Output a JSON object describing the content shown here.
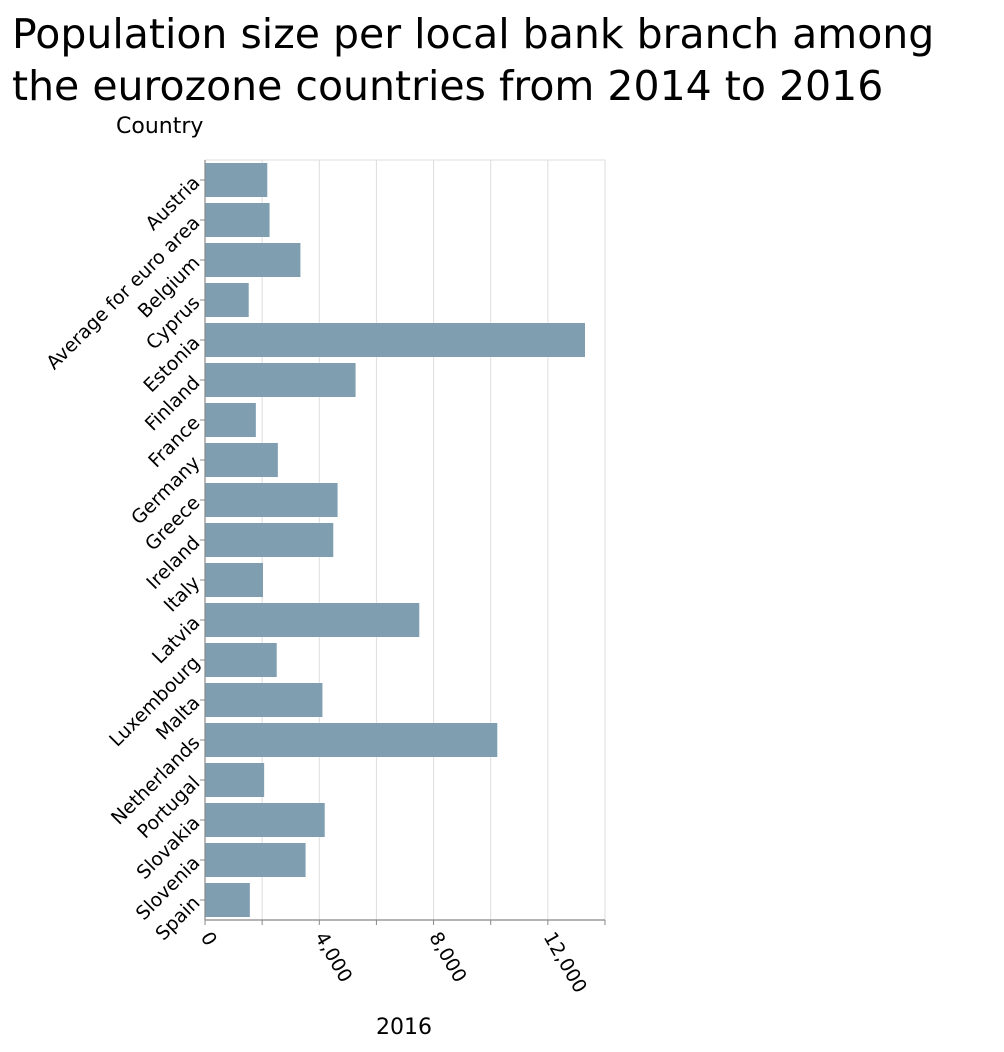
{
  "title_lines": [
    "Population size per local bank branch among",
    "the eurozone countries from 2014 to 2016"
  ],
  "chart_data": {
    "type": "bar",
    "orientation": "horizontal",
    "title": "Population size per local bank branch among the eurozone countries from 2014 to 2016",
    "ylabel": "Country",
    "xlabel": "2016",
    "xlim": [
      0,
      14000
    ],
    "x_ticks": [
      0,
      4000,
      8000,
      12000
    ],
    "x_tick_labels": [
      "0",
      "4,000",
      "8,000",
      "12,000"
    ],
    "grid": true,
    "bar_color": "#7f9fb1",
    "categories": [
      "Austria",
      "Average for euro area",
      "Belgium",
      "Cyprus",
      "Estonia",
      "Finland",
      "France",
      "Germany",
      "Greece",
      "Ireland",
      "Italy",
      "Latvia",
      "Luxembourg",
      "Malta",
      "Netherlands",
      "Portugal",
      "Slovakia",
      "Slovenia",
      "Spain"
    ],
    "values": [
      2180,
      2260,
      3340,
      1530,
      13300,
      5270,
      1780,
      2550,
      4640,
      4490,
      2030,
      7500,
      2510,
      4110,
      10230,
      2070,
      4190,
      3520,
      1570
    ]
  }
}
